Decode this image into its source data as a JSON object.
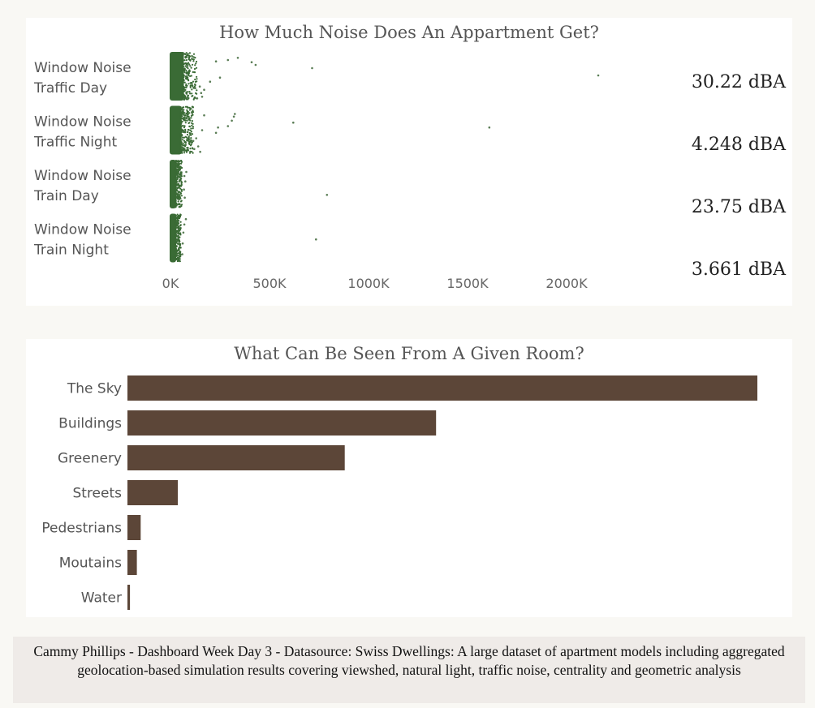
{
  "chart_data": [
    {
      "type": "scatter",
      "title": "How Much Noise Does An Appartment Get?",
      "categories": [
        {
          "label_lines": [
            "Window Noise",
            "Traffic Day"
          ],
          "value_label": "30.22 dBA",
          "cluster_max": 130000,
          "outliers": [
            [
              135000,
              1.72
            ],
            [
              160000,
              1.66
            ],
            [
              155000,
              1.52
            ],
            [
              170000,
              1.4
            ],
            [
              125000,
              1.34
            ],
            [
              148000,
              1.28
            ],
            [
              200000,
              1.1
            ],
            [
              250000,
              0.95
            ],
            [
              230000,
              0.35
            ],
            [
              290000,
              0.3
            ],
            [
              410000,
              0.38
            ],
            [
              430000,
              0.48
            ],
            [
              715000,
              0.6
            ],
            [
              2160000,
              0.87
            ],
            [
              340000,
              0.22
            ]
          ]
        },
        {
          "label_lines": [
            "Window Noise",
            "Traffic Night"
          ],
          "value_label": "4.248 dBA",
          "cluster_max": 110000,
          "outliers": [
            [
              120000,
              1.6
            ],
            [
              140000,
              1.5
            ],
            [
              150000,
              1.7
            ],
            [
              115000,
              1.3
            ],
            [
              130000,
              1.2
            ],
            [
              160000,
              0.9
            ],
            [
              240000,
              0.8
            ],
            [
              290000,
              0.75
            ],
            [
              310000,
              0.55
            ],
            [
              320000,
              0.4
            ],
            [
              325000,
              0.3
            ],
            [
              620000,
              0.62
            ],
            [
              1610000,
              0.8
            ],
            [
              170000,
              0.35
            ],
            [
              230000,
              1.0
            ]
          ]
        },
        {
          "label_lines": [
            "Window Noise",
            "Train Day"
          ],
          "value_label": "23.75 dBA",
          "cluster_max": 55000,
          "outliers": [
            [
              70000,
              0.6
            ],
            [
              75000,
              0.8
            ],
            [
              68000,
              1.1
            ],
            [
              80000,
              0.45
            ],
            [
              790000,
              1.3
            ],
            [
              72000,
              1.4
            ]
          ]
        },
        {
          "label_lines": [
            "Window Noise",
            "Train Night"
          ],
          "value_label": "3.661 dBA",
          "cluster_max": 50000,
          "outliers": [
            [
              65000,
              0.7
            ],
            [
              70000,
              0.4
            ],
            [
              62000,
              1.1
            ],
            [
              78000,
              0.2
            ],
            [
              735000,
              0.95
            ],
            [
              60000,
              1.5
            ]
          ]
        }
      ],
      "x_ticks": [
        "0K",
        "500K",
        "1000K",
        "1500K",
        "2000K"
      ],
      "x_tick_values": [
        0,
        500000,
        1000000,
        1500000,
        2000000
      ],
      "xlim": [
        0,
        2200000
      ],
      "color": "#3a6b35"
    },
    {
      "type": "bar",
      "title": "What Can Be Seen From A Given Room?",
      "categories": [
        "The Sky",
        "Buildings",
        "Greenery",
        "Streets",
        "Pedestrians",
        "Moutains",
        "Water"
      ],
      "values": [
        100,
        49,
        34.5,
        8,
        2.1,
        1.5,
        0.4
      ],
      "xlim": [
        0,
        100
      ],
      "color": "#5c4638"
    }
  ],
  "footer": {
    "text": "Cammy Phillips - Dashboard Week Day 3 - Datasource: Swiss Dwellings: A large dataset of apartment models including aggregated geolocation-based simulation results covering viewshed, natural light, traffic noise, centrality and geometric analysis"
  }
}
